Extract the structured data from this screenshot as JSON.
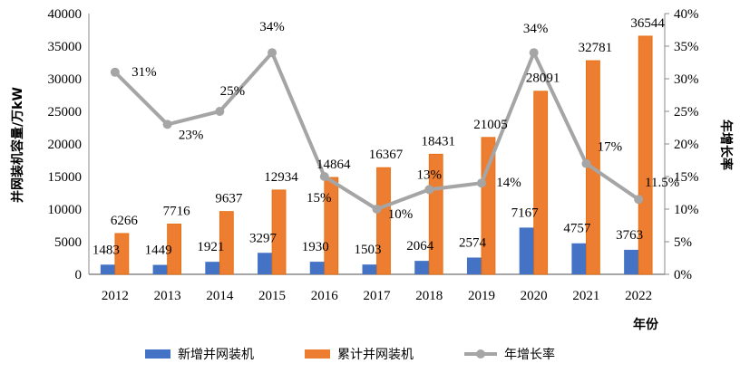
{
  "chart_data": {
    "type": "bar",
    "categories": [
      "2012",
      "2013",
      "2014",
      "2015",
      "2016",
      "2017",
      "2018",
      "2019",
      "2020",
      "2021",
      "2022"
    ],
    "xlabel": "年份",
    "ylabel": "并网装机容量/万kW",
    "y2label": "年增长率",
    "ylim": [
      0,
      40000
    ],
    "yticks": [
      0,
      5000,
      10000,
      15000,
      20000,
      25000,
      30000,
      35000,
      40000
    ],
    "y2lim": [
      0,
      40
    ],
    "y2ticks": [
      "0%",
      "5%",
      "10%",
      "15%",
      "20%",
      "25%",
      "30%",
      "35%",
      "40%"
    ],
    "grid": false,
    "legend_position": "bottom",
    "series": [
      {
        "name": "新增并网装机",
        "type": "bar",
        "axis": "left",
        "color": "#4472C4",
        "values": [
          1483,
          1449,
          1921,
          3297,
          1930,
          1503,
          2064,
          2574,
          7167,
          4757,
          3763
        ]
      },
      {
        "name": "累计并网装机",
        "type": "bar",
        "axis": "left",
        "color": "#ED7D31",
        "values": [
          6266,
          7716,
          9637,
          12934,
          14864,
          16367,
          18431,
          21005,
          28091,
          32781,
          36544
        ]
      },
      {
        "name": "年增长率",
        "type": "line",
        "axis": "right",
        "color": "#A5A5A5",
        "values": [
          31,
          23,
          25,
          34,
          15,
          10,
          13,
          14,
          34,
          17,
          11.5
        ],
        "labels": [
          "31%",
          "23%",
          "25%",
          "34%",
          "15%",
          "10%",
          "13%",
          "14%",
          "34%",
          "17%",
          "11.5%"
        ]
      }
    ]
  }
}
